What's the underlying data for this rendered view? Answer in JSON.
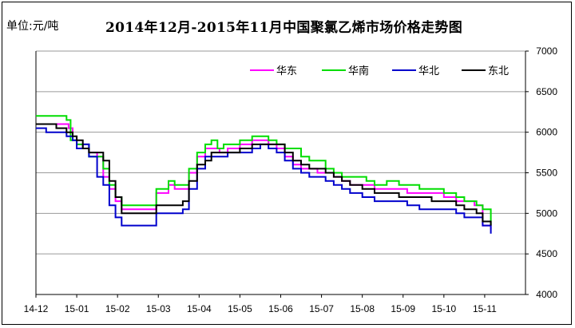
{
  "chart_data": {
    "type": "line",
    "title": "2014年12月-2015年11月中国聚氯乙烯市场价格走势图",
    "unit_label": "单位:元/吨",
    "x": [
      "14-12",
      "15-01",
      "15-02",
      "15-03",
      "15-04",
      "15-05",
      "15-06",
      "15-07",
      "15-08",
      "15-09",
      "15-10",
      "15-11"
    ],
    "ylim": [
      4000,
      7000
    ],
    "yticks": [
      4000,
      4500,
      5000,
      5500,
      6000,
      6500,
      7000
    ],
    "y_axis_side": "right",
    "grid": "horizontal",
    "legend": "top-right",
    "series": [
      {
        "name": "华东",
        "color": "#ff00ff",
        "points": [
          [
            0.0,
            6100
          ],
          [
            0.2,
            6100
          ],
          [
            0.5,
            6100
          ],
          [
            0.8,
            6050
          ],
          [
            0.9,
            5900
          ],
          [
            1.0,
            5850
          ],
          [
            1.15,
            5850
          ],
          [
            1.3,
            5750
          ],
          [
            1.5,
            5700
          ],
          [
            1.65,
            5450
          ],
          [
            1.8,
            5300
          ],
          [
            1.95,
            5150
          ],
          [
            2.1,
            5050
          ],
          [
            2.3,
            5050
          ],
          [
            2.7,
            5050
          ],
          [
            2.95,
            5250
          ],
          [
            3.25,
            5350
          ],
          [
            3.4,
            5300
          ],
          [
            3.6,
            5300
          ],
          [
            3.75,
            5500
          ],
          [
            3.95,
            5700
          ],
          [
            4.15,
            5800
          ],
          [
            4.3,
            5800
          ],
          [
            4.5,
            5750
          ],
          [
            4.7,
            5800
          ],
          [
            5.0,
            5850
          ],
          [
            5.3,
            5900
          ],
          [
            5.5,
            5900
          ],
          [
            5.7,
            5850
          ],
          [
            5.9,
            5800
          ],
          [
            6.1,
            5700
          ],
          [
            6.3,
            5600
          ],
          [
            6.5,
            5550
          ],
          [
            6.7,
            5550
          ],
          [
            6.9,
            5500
          ],
          [
            7.1,
            5500
          ],
          [
            7.3,
            5450
          ],
          [
            7.5,
            5400
          ],
          [
            7.7,
            5350
          ],
          [
            8.0,
            5350
          ],
          [
            8.3,
            5300
          ],
          [
            8.6,
            5300
          ],
          [
            8.9,
            5300
          ],
          [
            9.1,
            5250
          ],
          [
            9.4,
            5250
          ],
          [
            9.7,
            5250
          ],
          [
            10.0,
            5200
          ],
          [
            10.3,
            5150
          ],
          [
            10.5,
            5150
          ],
          [
            10.75,
            5100
          ],
          [
            10.95,
            4850
          ],
          [
            11.15,
            4800
          ]
        ]
      },
      {
        "name": "华南",
        "color": "#00dd00",
        "points": [
          [
            0.0,
            6200
          ],
          [
            0.3,
            6200
          ],
          [
            0.6,
            6200
          ],
          [
            0.75,
            6150
          ],
          [
            0.85,
            5900
          ],
          [
            1.0,
            5850
          ],
          [
            1.15,
            5850
          ],
          [
            1.3,
            5700
          ],
          [
            1.5,
            5700
          ],
          [
            1.65,
            5550
          ],
          [
            1.8,
            5350
          ],
          [
            1.95,
            5200
          ],
          [
            2.1,
            5100
          ],
          [
            2.3,
            5100
          ],
          [
            2.7,
            5100
          ],
          [
            2.95,
            5300
          ],
          [
            3.25,
            5400
          ],
          [
            3.4,
            5350
          ],
          [
            3.6,
            5350
          ],
          [
            3.75,
            5550
          ],
          [
            3.95,
            5750
          ],
          [
            4.15,
            5850
          ],
          [
            4.3,
            5900
          ],
          [
            4.45,
            5800
          ],
          [
            4.6,
            5850
          ],
          [
            4.8,
            5850
          ],
          [
            5.0,
            5900
          ],
          [
            5.3,
            5950
          ],
          [
            5.5,
            5950
          ],
          [
            5.7,
            5900
          ],
          [
            5.9,
            5850
          ],
          [
            6.1,
            5800
          ],
          [
            6.3,
            5800
          ],
          [
            6.5,
            5700
          ],
          [
            6.7,
            5650
          ],
          [
            6.9,
            5650
          ],
          [
            7.1,
            5550
          ],
          [
            7.3,
            5500
          ],
          [
            7.5,
            5450
          ],
          [
            7.8,
            5450
          ],
          [
            8.1,
            5400
          ],
          [
            8.3,
            5350
          ],
          [
            8.6,
            5400
          ],
          [
            8.9,
            5350
          ],
          [
            9.1,
            5350
          ],
          [
            9.4,
            5300
          ],
          [
            9.7,
            5300
          ],
          [
            10.0,
            5250
          ],
          [
            10.3,
            5200
          ],
          [
            10.5,
            5150
          ],
          [
            10.8,
            5100
          ],
          [
            10.95,
            5050
          ],
          [
            11.15,
            4850
          ]
        ]
      },
      {
        "name": "华北",
        "color": "#0000cc",
        "points": [
          [
            0.0,
            6050
          ],
          [
            0.25,
            6000
          ],
          [
            0.5,
            6000
          ],
          [
            0.75,
            5950
          ],
          [
            0.9,
            5900
          ],
          [
            1.0,
            5800
          ],
          [
            1.15,
            5850
          ],
          [
            1.3,
            5700
          ],
          [
            1.5,
            5450
          ],
          [
            1.65,
            5350
          ],
          [
            1.8,
            5100
          ],
          [
            1.95,
            4950
          ],
          [
            2.1,
            4850
          ],
          [
            2.3,
            4850
          ],
          [
            2.7,
            4850
          ],
          [
            2.95,
            5000
          ],
          [
            3.25,
            5000
          ],
          [
            3.4,
            5000
          ],
          [
            3.6,
            5050
          ],
          [
            3.75,
            5300
          ],
          [
            3.95,
            5550
          ],
          [
            4.15,
            5700
          ],
          [
            4.3,
            5700
          ],
          [
            4.5,
            5700
          ],
          [
            4.7,
            5750
          ],
          [
            5.0,
            5750
          ],
          [
            5.3,
            5800
          ],
          [
            5.5,
            5850
          ],
          [
            5.7,
            5800
          ],
          [
            5.9,
            5750
          ],
          [
            6.1,
            5650
          ],
          [
            6.3,
            5550
          ],
          [
            6.5,
            5500
          ],
          [
            6.7,
            5450
          ],
          [
            6.9,
            5450
          ],
          [
            7.1,
            5400
          ],
          [
            7.3,
            5350
          ],
          [
            7.5,
            5300
          ],
          [
            7.7,
            5250
          ],
          [
            8.0,
            5200
          ],
          [
            8.3,
            5150
          ],
          [
            8.6,
            5150
          ],
          [
            8.9,
            5150
          ],
          [
            9.1,
            5100
          ],
          [
            9.4,
            5050
          ],
          [
            9.7,
            5050
          ],
          [
            10.0,
            5050
          ],
          [
            10.3,
            5000
          ],
          [
            10.5,
            4950
          ],
          [
            10.8,
            4950
          ],
          [
            10.95,
            4850
          ],
          [
            11.15,
            4750
          ]
        ]
      },
      {
        "name": "东北",
        "color": "#000000",
        "points": [
          [
            0.0,
            6100
          ],
          [
            0.25,
            6100
          ],
          [
            0.5,
            6050
          ],
          [
            0.75,
            6000
          ],
          [
            0.9,
            5950
          ],
          [
            1.0,
            5900
          ],
          [
            1.15,
            5800
          ],
          [
            1.3,
            5750
          ],
          [
            1.5,
            5750
          ],
          [
            1.65,
            5650
          ],
          [
            1.8,
            5400
          ],
          [
            1.95,
            5200
          ],
          [
            2.1,
            5000
          ],
          [
            2.3,
            5000
          ],
          [
            2.7,
            5000
          ],
          [
            2.95,
            5100
          ],
          [
            3.25,
            5100
          ],
          [
            3.4,
            5100
          ],
          [
            3.6,
            5150
          ],
          [
            3.75,
            5400
          ],
          [
            3.95,
            5600
          ],
          [
            4.15,
            5650
          ],
          [
            4.3,
            5750
          ],
          [
            4.5,
            5750
          ],
          [
            4.7,
            5750
          ],
          [
            5.0,
            5800
          ],
          [
            5.3,
            5850
          ],
          [
            5.5,
            5850
          ],
          [
            5.7,
            5850
          ],
          [
            5.9,
            5850
          ],
          [
            6.1,
            5750
          ],
          [
            6.3,
            5650
          ],
          [
            6.5,
            5600
          ],
          [
            6.7,
            5550
          ],
          [
            6.9,
            5550
          ],
          [
            7.1,
            5500
          ],
          [
            7.3,
            5450
          ],
          [
            7.5,
            5400
          ],
          [
            7.7,
            5350
          ],
          [
            8.0,
            5300
          ],
          [
            8.3,
            5250
          ],
          [
            8.6,
            5250
          ],
          [
            8.9,
            5200
          ],
          [
            9.1,
            5200
          ],
          [
            9.4,
            5200
          ],
          [
            9.7,
            5150
          ],
          [
            10.0,
            5150
          ],
          [
            10.3,
            5100
          ],
          [
            10.5,
            5050
          ],
          [
            10.8,
            5000
          ],
          [
            10.95,
            4900
          ],
          [
            11.15,
            4850
          ]
        ]
      }
    ]
  }
}
